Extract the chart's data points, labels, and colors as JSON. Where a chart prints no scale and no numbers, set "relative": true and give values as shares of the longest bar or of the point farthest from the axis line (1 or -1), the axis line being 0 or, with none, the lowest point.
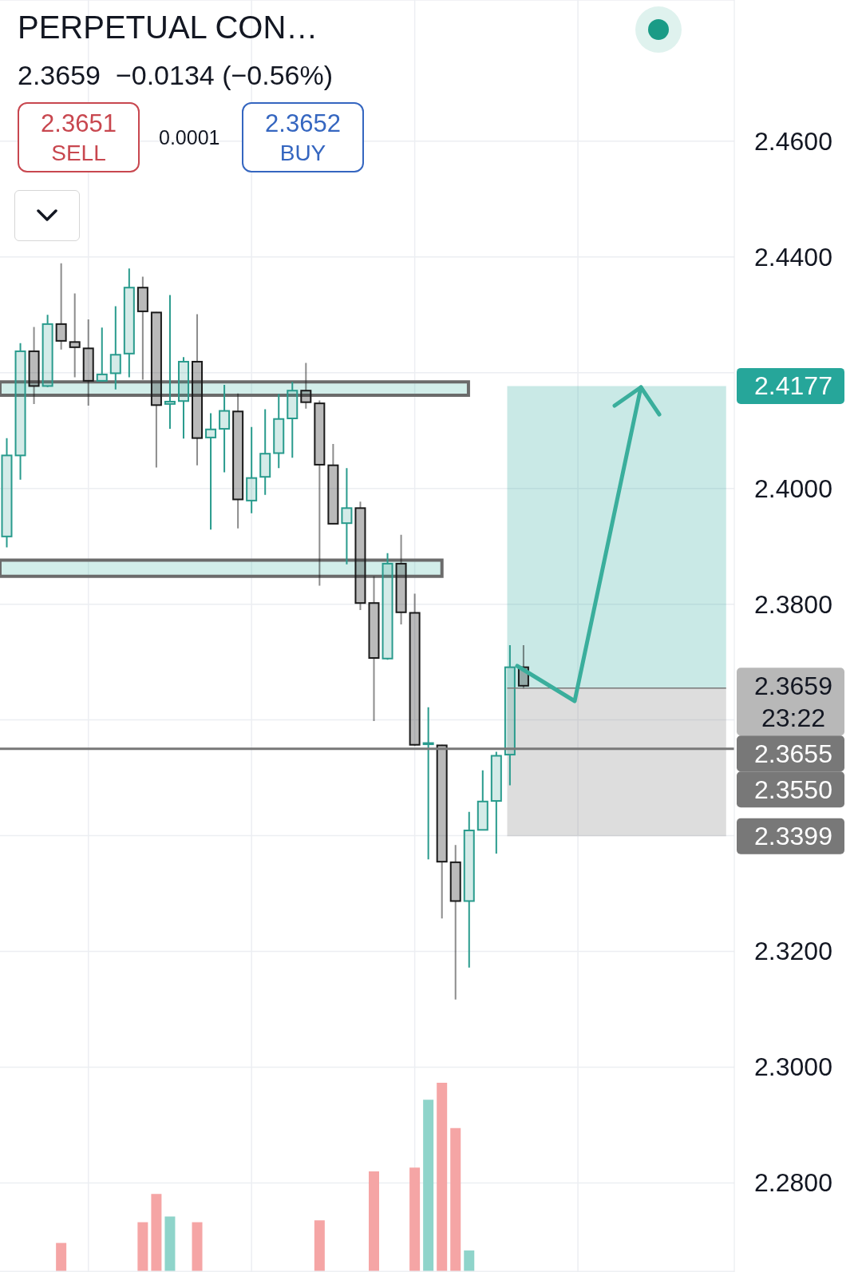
{
  "chart_data": [
    {
      "type": "candlestick",
      "title": "PERPETUAL CON…",
      "subtitle": "2.3659  −0.0134 (−0.56%)",
      "categories": [
        null,
        null,
        null,
        null,
        null,
        null,
        null,
        null,
        null,
        null,
        null,
        null,
        null,
        null,
        null,
        null,
        null,
        null,
        null,
        null,
        null,
        null,
        null,
        null,
        null,
        null,
        null,
        null,
        null,
        null,
        null,
        null,
        null,
        null,
        null,
        null,
        null,
        null,
        null,
        null,
        null,
        null,
        null,
        null,
        null,
        null,
        null,
        null,
        null,
        null,
        null,
        null,
        null,
        null
      ],
      "ohlc": [
        [
          2.3917,
          2.4087,
          2.3898,
          2.4057
        ],
        [
          2.4057,
          2.4251,
          2.4015,
          2.4237
        ],
        [
          2.4237,
          2.4279,
          2.4146,
          2.4177
        ],
        [
          2.4177,
          2.43,
          2.4175,
          2.4284
        ],
        [
          2.4284,
          2.4389,
          2.424,
          2.4255
        ],
        [
          2.4253,
          2.4337,
          2.4192,
          2.4244
        ],
        [
          2.4242,
          2.4292,
          2.4143,
          2.4186
        ],
        [
          2.4186,
          2.4278,
          2.4185,
          2.4197
        ],
        [
          2.4199,
          2.4315,
          2.4171,
          2.4231
        ],
        [
          2.4233,
          2.438,
          2.4192,
          2.4347
        ],
        [
          2.4347,
          2.4366,
          2.4188,
          2.4306
        ],
        [
          2.4304,
          2.4305,
          2.4036,
          2.4144
        ],
        [
          2.4146,
          2.4334,
          2.4103,
          2.415
        ],
        [
          2.4151,
          2.4227,
          2.4086,
          2.4219
        ],
        [
          2.4219,
          2.4301,
          2.404,
          2.4087
        ],
        [
          2.4088,
          2.413,
          2.3929,
          2.4102
        ],
        [
          2.4103,
          2.4179,
          2.4028,
          2.4134
        ],
        [
          2.4133,
          2.4164,
          2.3931,
          2.3981
        ],
        [
          2.3979,
          2.4106,
          2.3957,
          2.4018
        ],
        [
          2.402,
          2.4137,
          2.3989,
          2.406
        ],
        [
          2.4061,
          2.4163,
          2.4035,
          2.412
        ],
        [
          2.4121,
          2.4184,
          2.4053,
          2.4169
        ],
        [
          2.4169,
          2.4217,
          2.4138,
          2.4149
        ],
        [
          2.4147,
          2.4152,
          2.3832,
          2.4041
        ],
        [
          2.404,
          2.4077,
          2.3938,
          2.3939
        ],
        [
          2.394,
          2.4035,
          2.3869,
          2.3966
        ],
        [
          2.3966,
          2.3977,
          2.379,
          2.3802
        ],
        [
          2.3802,
          2.3848,
          2.3598,
          2.3707
        ],
        [
          2.3706,
          2.3888,
          2.3704,
          2.387
        ],
        [
          2.387,
          2.392,
          2.3765,
          2.3786
        ],
        [
          2.3785,
          2.3818,
          2.3555,
          2.3557
        ],
        [
          2.3559,
          2.3622,
          2.3359,
          2.356
        ],
        [
          2.3556,
          2.3557,
          2.3257,
          2.3355
        ],
        [
          2.3354,
          2.3384,
          2.3117,
          2.3287
        ],
        [
          2.3287,
          2.3441,
          2.3172,
          2.3409
        ],
        [
          2.341,
          2.3513,
          2.3409,
          2.3459
        ],
        [
          2.346,
          2.3545,
          2.3369,
          2.3538
        ],
        [
          2.354,
          2.3729,
          2.3487,
          2.3691
        ],
        [
          2.3691,
          2.3729,
          2.3654,
          2.3659
        ],
        null,
        null,
        null,
        null,
        null,
        null,
        null,
        null,
        null,
        null,
        null,
        null,
        null,
        null,
        null
      ],
      "colors": [
        "#299b8d",
        "#299b8d",
        "#1a1a1a",
        "#299b8d",
        "#1a1a1a",
        "#1a1a1a",
        "#1a1a1a",
        "#299b8d",
        "#299b8d",
        "#299b8d",
        "#1a1a1a",
        "#1a1a1a",
        "#299b8d",
        "#299b8d",
        "#1a1a1a",
        "#299b8d",
        "#299b8d",
        "#1a1a1a",
        "#299b8d",
        "#299b8d",
        "#299b8d",
        "#299b8d",
        "#1a1a1a",
        "#1a1a1a",
        "#1a1a1a",
        "#299b8d",
        "#1a1a1a",
        "#1a1a1a",
        "#299b8d",
        "#1a1a1a",
        "#1a1a1a",
        "#299b8d",
        "#1a1a1a",
        "#1a1a1a",
        "#299b8d",
        "#299b8d",
        "#299b8d",
        "#299b8d",
        "#1a1a1a",
        null,
        null,
        null,
        null,
        null,
        null,
        null,
        null,
        null,
        null,
        null,
        null,
        null,
        null,
        null
      ],
      "ylim": [
        2.2646,
        2.4844
      ],
      "yticks": [
        {
          "value": 2.28,
          "label": "2.2800"
        },
        {
          "value": 2.3,
          "label": "2.3000"
        },
        {
          "value": 2.32,
          "label": "2.3200"
        },
        {
          "value": 2.34,
          "label": null
        },
        {
          "value": 2.36,
          "label": null
        },
        {
          "value": 2.38,
          "label": "2.3800"
        },
        {
          "value": 2.4,
          "label": "2.4000"
        },
        {
          "value": 2.42,
          "label": null
        },
        {
          "value": 2.44,
          "label": "2.4400"
        },
        {
          "value": 2.46,
          "label": "2.4600"
        }
      ],
      "grid": true,
      "tick_labels": "y",
      "bands": [
        {
          "axis": "y",
          "from": 2.3655,
          "to": 2.4177,
          "label": "2.4177",
          "color": "#26a69a"
        },
        {
          "axis": "y",
          "from": 2.3399,
          "to": 2.3655,
          "label": "2.3399",
          "color": "#787878"
        },
        {
          "axis": "y",
          "from": 2.4161,
          "to": 2.4184,
          "color": "#4dbcaa"
        },
        {
          "axis": "y",
          "from": 2.3848,
          "to": 2.3876,
          "color": "#4dbcaa"
        }
      ],
      "ref_lines": [
        {
          "axis": "y",
          "value": 2.3655,
          "label": "2.3655",
          "color": "#787878"
        },
        {
          "axis": "y",
          "value": 2.355,
          "label": "2.3550",
          "color": "#787878"
        }
      ],
      "annotations": [
        "2.3651",
        "SELL",
        "0.0001",
        "2.3652",
        "BUY",
        "2.3659\n23:22"
      ]
    },
    {
      "type": "bar",
      "relative": true,
      "categories": [
        null,
        null,
        null,
        null,
        null,
        null,
        null,
        null,
        null,
        null,
        null,
        null,
        null,
        null,
        null,
        null,
        null,
        null,
        null,
        null,
        null,
        null,
        null,
        null,
        null,
        null,
        null,
        null,
        null,
        null,
        null,
        null,
        null,
        null,
        null,
        null,
        null,
        null,
        null,
        null,
        null,
        null,
        null,
        null,
        null,
        null,
        null,
        null,
        null,
        null,
        null,
        null,
        null,
        null
      ],
      "values": [
        null,
        null,
        null,
        null,
        0.15,
        null,
        null,
        null,
        null,
        null,
        0.26,
        0.41,
        0.29,
        null,
        0.26,
        null,
        null,
        null,
        null,
        null,
        null,
        null,
        null,
        0.27,
        null,
        null,
        null,
        0.53,
        null,
        null,
        0.55,
        0.91,
        1,
        0.76,
        0.11,
        null,
        null,
        null,
        null,
        null,
        null,
        null,
        null,
        null,
        null,
        null,
        null,
        null,
        null,
        null,
        null,
        null,
        null,
        null
      ],
      "colors": [
        "#8fd4ca",
        "#8fd4ca",
        "#f5a5a5",
        "#8fd4ca",
        "#f5a5a5",
        "#f5a5a5",
        "#f5a5a5",
        "#8fd4ca",
        "#8fd4ca",
        "#8fd4ca",
        "#f5a5a5",
        "#f5a5a5",
        "#8fd4ca",
        "#8fd4ca",
        "#f5a5a5",
        "#8fd4ca",
        "#8fd4ca",
        "#f5a5a5",
        "#8fd4ca",
        "#8fd4ca",
        "#8fd4ca",
        "#8fd4ca",
        "#f5a5a5",
        "#f5a5a5",
        "#f5a5a5",
        "#8fd4ca",
        "#f5a5a5",
        "#f5a5a5",
        "#8fd4ca",
        "#f5a5a5",
        "#f5a5a5",
        "#8fd4ca",
        "#f5a5a5",
        "#f5a5a5",
        "#8fd4ca",
        "#8fd4ca",
        "#8fd4ca",
        "#8fd4ca",
        "#f5a5a5",
        null,
        null,
        null,
        null,
        null,
        null,
        null,
        null,
        null,
        null,
        null,
        null,
        null,
        null,
        null
      ]
    }
  ]
}
